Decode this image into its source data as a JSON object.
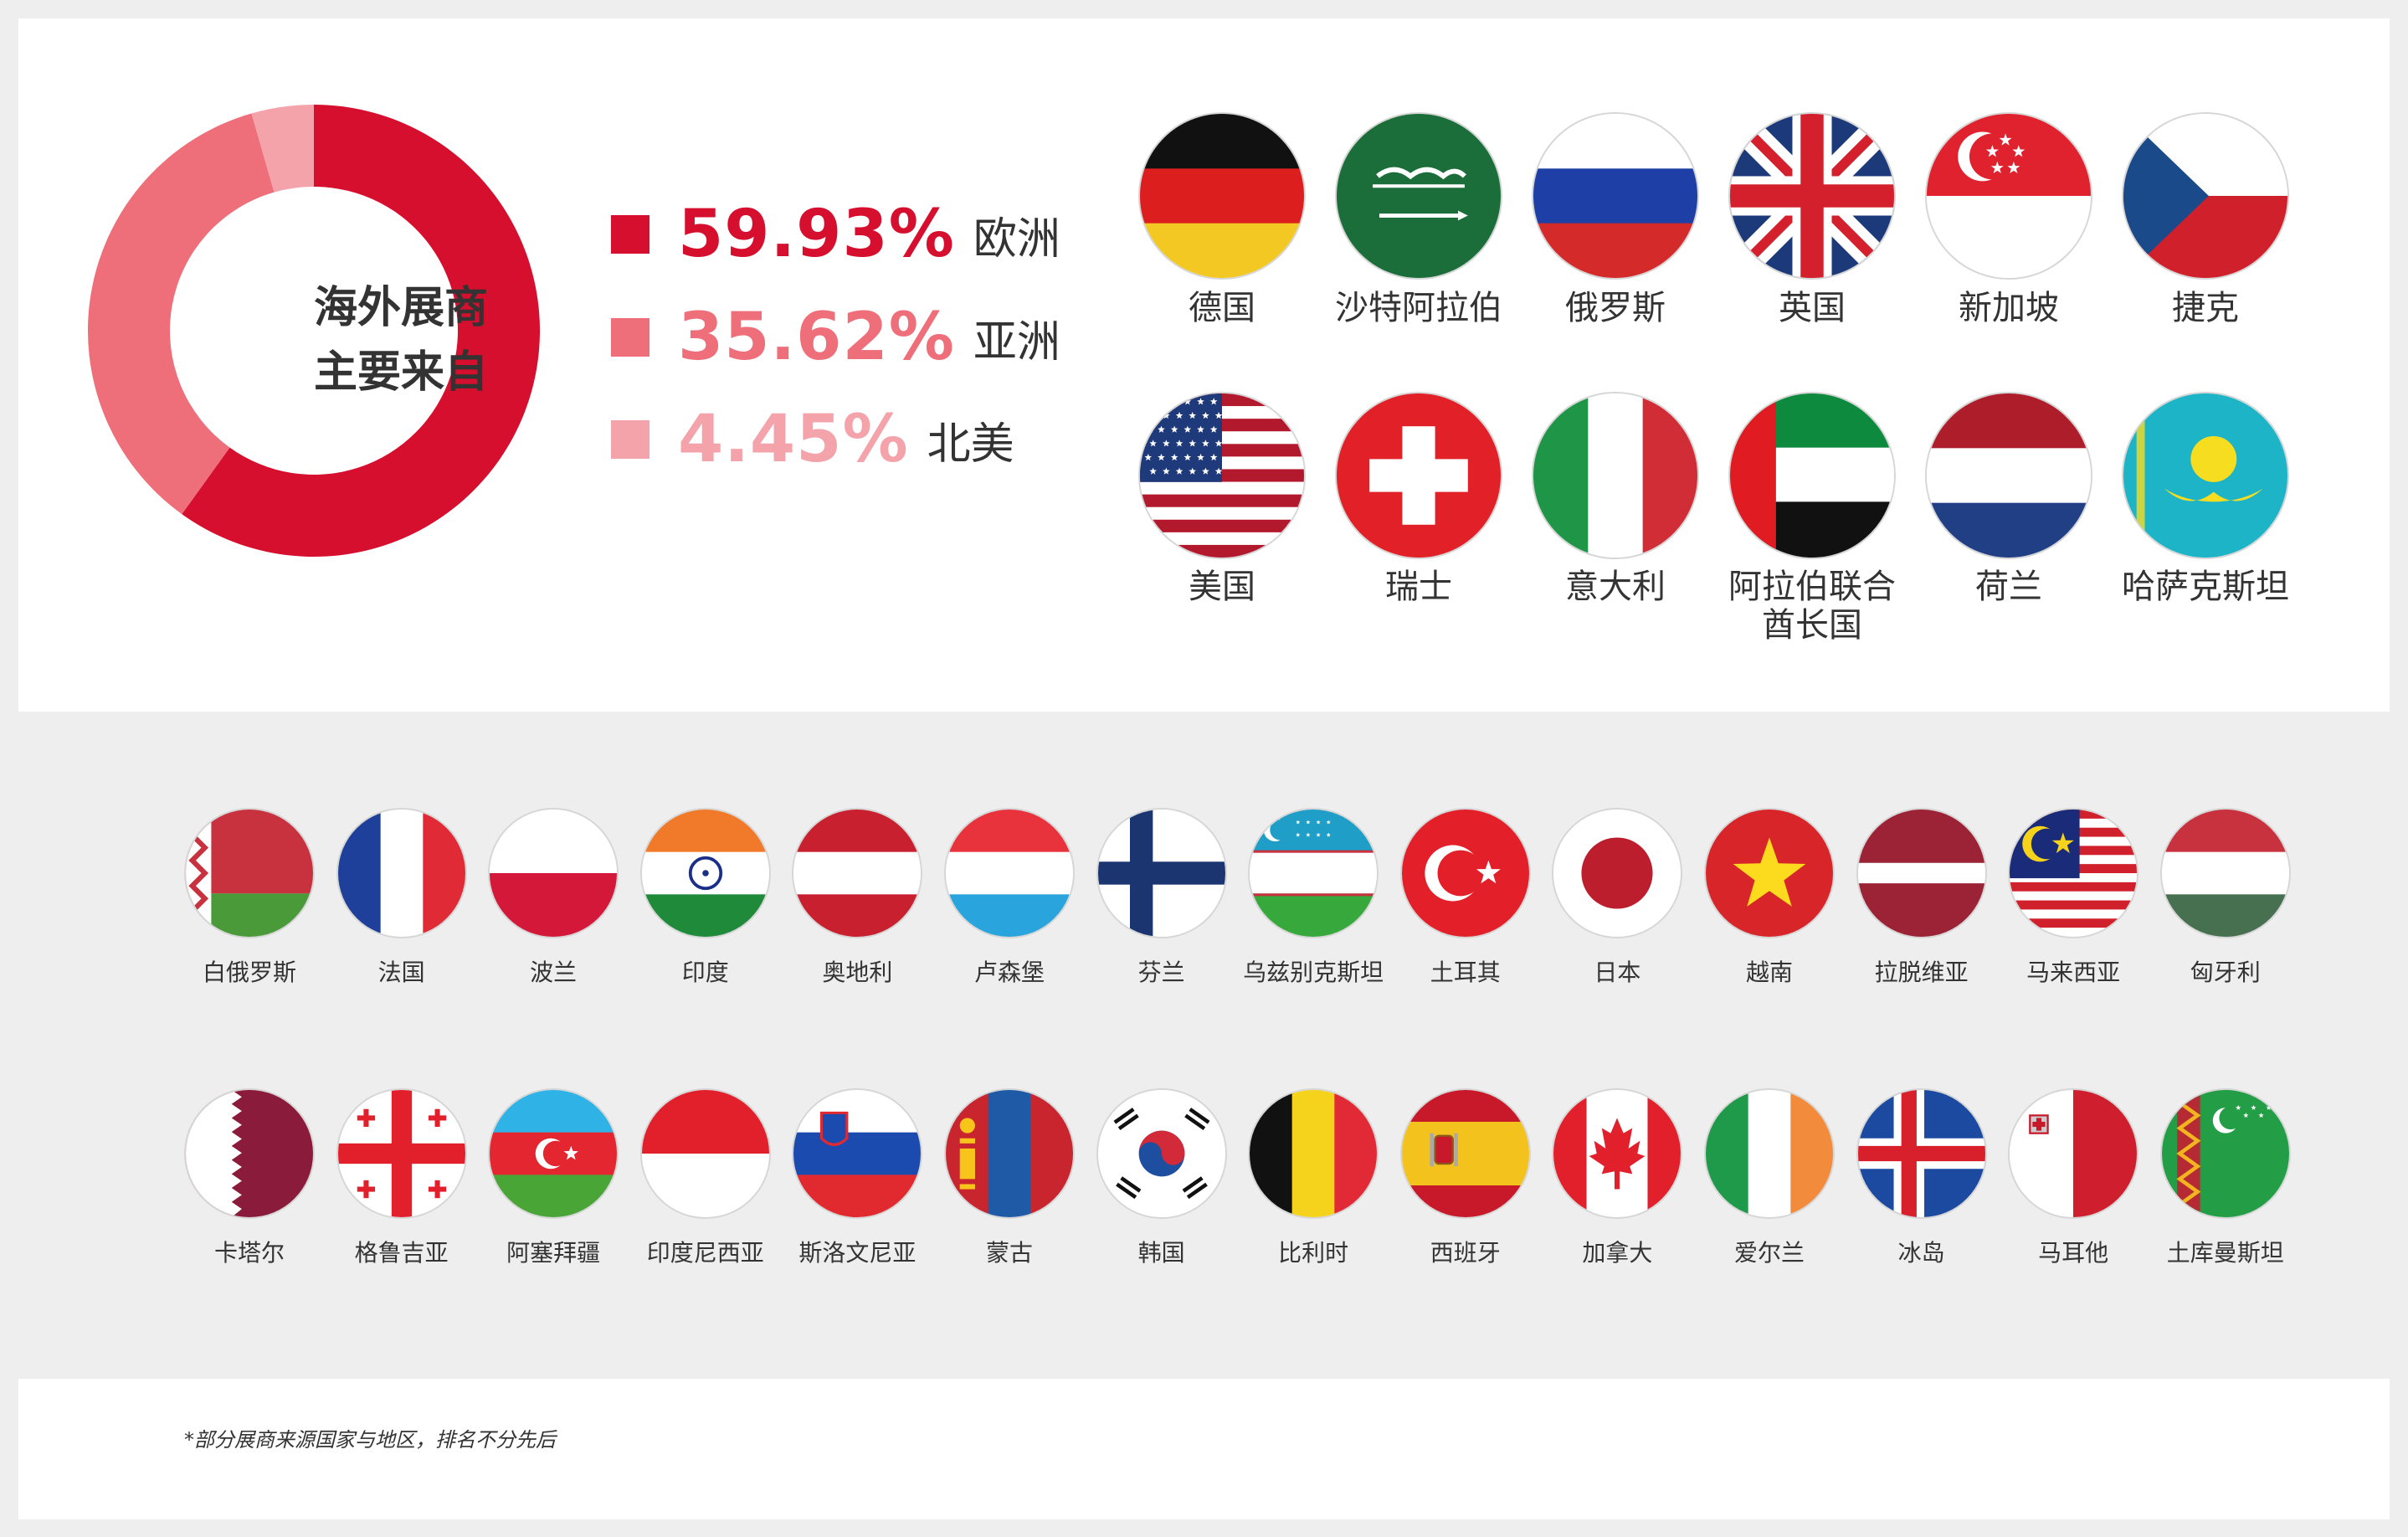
{
  "chart_data": {
    "type": "pie",
    "center_title": [
      "海外展商",
      "主要来自"
    ],
    "slices": [
      {
        "label": "欧洲",
        "value": 59.93,
        "display": "59.93%",
        "color": "#d50f2d"
      },
      {
        "label": "亚洲",
        "value": 35.62,
        "display": "35.62%",
        "color": "#ee6e79"
      },
      {
        "label": "北美",
        "value": 4.45,
        "display": "4.45%",
        "color": "#f4a3ab"
      }
    ]
  },
  "big_flags": [
    {
      "label": "德国",
      "icon": "germany-flag"
    },
    {
      "label": "沙特阿拉伯",
      "icon": "saudi-arabia-flag"
    },
    {
      "label": "俄罗斯",
      "icon": "russia-flag"
    },
    {
      "label": "英国",
      "icon": "uk-flag"
    },
    {
      "label": "新加坡",
      "icon": "singapore-flag"
    },
    {
      "label": "捷克",
      "icon": "czech-flag"
    },
    {
      "label": "美国",
      "icon": "usa-flag"
    },
    {
      "label": "瑞士",
      "icon": "switzerland-flag"
    },
    {
      "label": "意大利",
      "icon": "italy-flag"
    },
    {
      "label": "阿拉伯联合\n酋长国",
      "icon": "uae-flag"
    },
    {
      "label": "荷兰",
      "icon": "netherlands-flag"
    },
    {
      "label": "哈萨克斯坦",
      "icon": "kazakhstan-flag"
    }
  ],
  "small_flags": [
    {
      "label": "白俄罗斯",
      "icon": "belarus-flag"
    },
    {
      "label": "法国",
      "icon": "france-flag"
    },
    {
      "label": "波兰",
      "icon": "poland-flag"
    },
    {
      "label": "印度",
      "icon": "india-flag"
    },
    {
      "label": "奥地利",
      "icon": "austria-flag"
    },
    {
      "label": "卢森堡",
      "icon": "luxembourg-flag"
    },
    {
      "label": "芬兰",
      "icon": "finland-flag"
    },
    {
      "label": "乌兹别克斯坦",
      "icon": "uzbekistan-flag"
    },
    {
      "label": "土耳其",
      "icon": "turkey-flag"
    },
    {
      "label": "日本",
      "icon": "japan-flag"
    },
    {
      "label": "越南",
      "icon": "vietnam-flag"
    },
    {
      "label": "拉脱维亚",
      "icon": "latvia-flag"
    },
    {
      "label": "马来西亚",
      "icon": "malaysia-flag"
    },
    {
      "label": "匈牙利",
      "icon": "hungary-flag"
    },
    {
      "label": "卡塔尔",
      "icon": "qatar-flag"
    },
    {
      "label": "格鲁吉亚",
      "icon": "georgia-flag"
    },
    {
      "label": "阿塞拜疆",
      "icon": "azerbaijan-flag"
    },
    {
      "label": "印度尼西亚",
      "icon": "indonesia-flag"
    },
    {
      "label": "斯洛文尼亚",
      "icon": "slovenia-flag"
    },
    {
      "label": "蒙古",
      "icon": "mongolia-flag"
    },
    {
      "label": "韩国",
      "icon": "south-korea-flag"
    },
    {
      "label": "比利时",
      "icon": "belgium-flag"
    },
    {
      "label": "西班牙",
      "icon": "spain-flag"
    },
    {
      "label": "加拿大",
      "icon": "canada-flag"
    },
    {
      "label": "爱尔兰",
      "icon": "ireland-flag"
    },
    {
      "label": "冰岛",
      "icon": "iceland-flag"
    },
    {
      "label": "马耳他",
      "icon": "malta-flag"
    },
    {
      "label": "土库曼斯坦",
      "icon": "turkmenistan-flag"
    }
  ],
  "footnote": "*部分展商来源国家与地区，排名不分先后"
}
